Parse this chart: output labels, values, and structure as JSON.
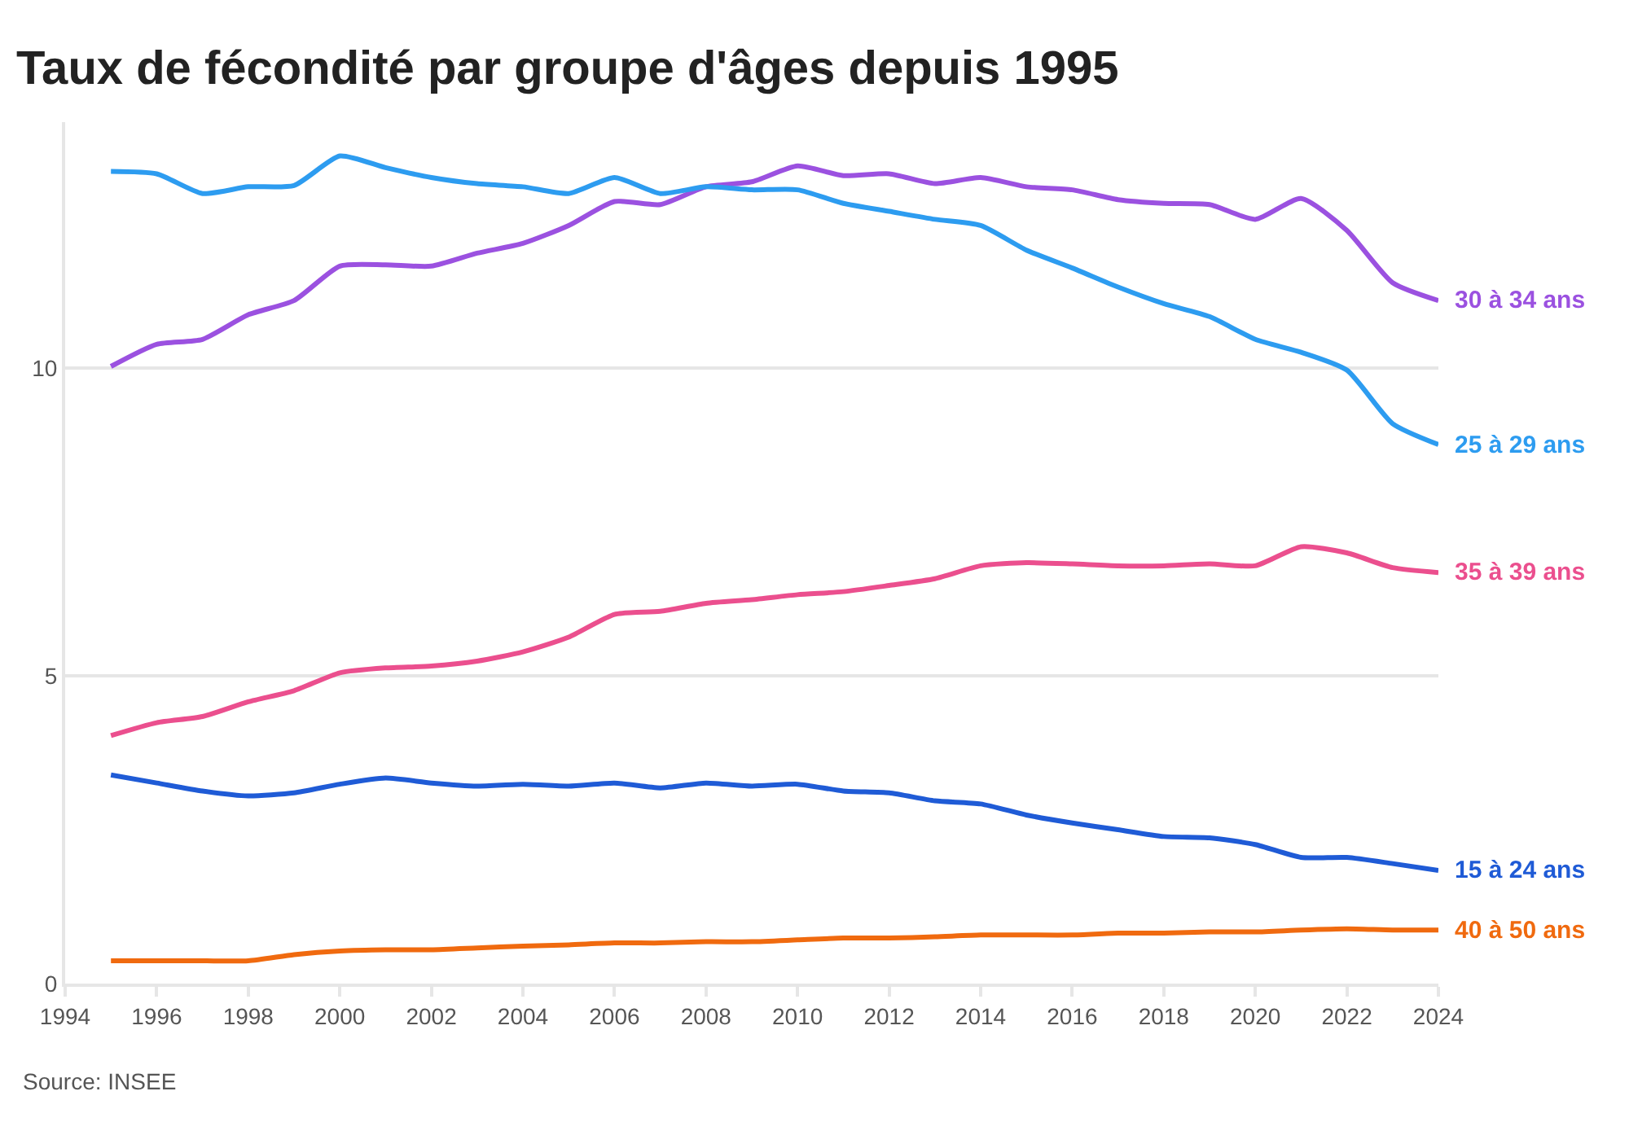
{
  "chart_data": {
    "type": "line",
    "title": "Taux de fécondité par groupe d'âges depuis 1995",
    "x": [
      1995,
      1996,
      1997,
      1998,
      1999,
      2000,
      2001,
      2002,
      2003,
      2004,
      2005,
      2006,
      2007,
      2008,
      2009,
      2010,
      2011,
      2012,
      2013,
      2014,
      2015,
      2016,
      2017,
      2018,
      2019,
      2020,
      2021,
      2022,
      2023,
      2024
    ],
    "series": [
      {
        "name": "30 à 34 ans",
        "color": "#9b51e0",
        "values": [
          10.03,
          10.39,
          10.47,
          10.87,
          11.1,
          11.66,
          11.68,
          11.66,
          11.87,
          12.03,
          12.32,
          12.71,
          12.66,
          12.95,
          13.03,
          13.29,
          13.13,
          13.16,
          13.0,
          13.1,
          12.95,
          12.9,
          12.74,
          12.68,
          12.66,
          12.42,
          12.76,
          12.24,
          11.39,
          11.1
        ]
      },
      {
        "name": "25 à 29 ans",
        "color": "#2d9cf0",
        "values": [
          13.2,
          13.16,
          12.84,
          12.95,
          12.97,
          13.45,
          13.26,
          13.1,
          13.0,
          12.95,
          12.84,
          13.1,
          12.84,
          12.95,
          12.9,
          12.9,
          12.68,
          12.55,
          12.42,
          12.32,
          11.92,
          11.63,
          11.32,
          11.05,
          10.84,
          10.47,
          10.26,
          9.97,
          9.1,
          8.76
        ]
      },
      {
        "name": "35 à 39 ans",
        "color": "#eb4f8e",
        "values": [
          4.03,
          4.24,
          4.34,
          4.58,
          4.76,
          5.05,
          5.13,
          5.16,
          5.24,
          5.39,
          5.63,
          6.0,
          6.05,
          6.18,
          6.24,
          6.32,
          6.37,
          6.47,
          6.58,
          6.79,
          6.84,
          6.82,
          6.79,
          6.79,
          6.82,
          6.79,
          7.1,
          7.0,
          6.76,
          6.68
        ]
      },
      {
        "name": "15 à 24 ans",
        "color": "#1f5bd6",
        "values": [
          3.39,
          3.26,
          3.13,
          3.05,
          3.1,
          3.24,
          3.34,
          3.26,
          3.21,
          3.24,
          3.21,
          3.26,
          3.18,
          3.26,
          3.21,
          3.24,
          3.13,
          3.1,
          2.97,
          2.92,
          2.74,
          2.61,
          2.5,
          2.39,
          2.37,
          2.26,
          2.05,
          2.05,
          1.95,
          1.84
        ]
      },
      {
        "name": "40 à 50 ans",
        "color": "#f06a0f",
        "values": [
          0.37,
          0.37,
          0.37,
          0.37,
          0.47,
          0.53,
          0.55,
          0.55,
          0.58,
          0.61,
          0.63,
          0.66,
          0.66,
          0.68,
          0.68,
          0.71,
          0.74,
          0.74,
          0.76,
          0.79,
          0.79,
          0.79,
          0.82,
          0.82,
          0.84,
          0.84,
          0.87,
          0.89,
          0.87,
          0.87
        ]
      }
    ],
    "xlim": [
      1994,
      2024
    ],
    "xticks": [
      1994,
      1996,
      1998,
      2000,
      2002,
      2004,
      2006,
      2008,
      2010,
      2012,
      2014,
      2016,
      2018,
      2020,
      2022,
      2024
    ],
    "ylim": [
      0,
      14
    ],
    "yticks": [
      0,
      5,
      10
    ],
    "grid": "y",
    "legend": false,
    "marker": "none",
    "line_style": "solid",
    "annotations": [
      "Source: INSEE"
    ]
  }
}
